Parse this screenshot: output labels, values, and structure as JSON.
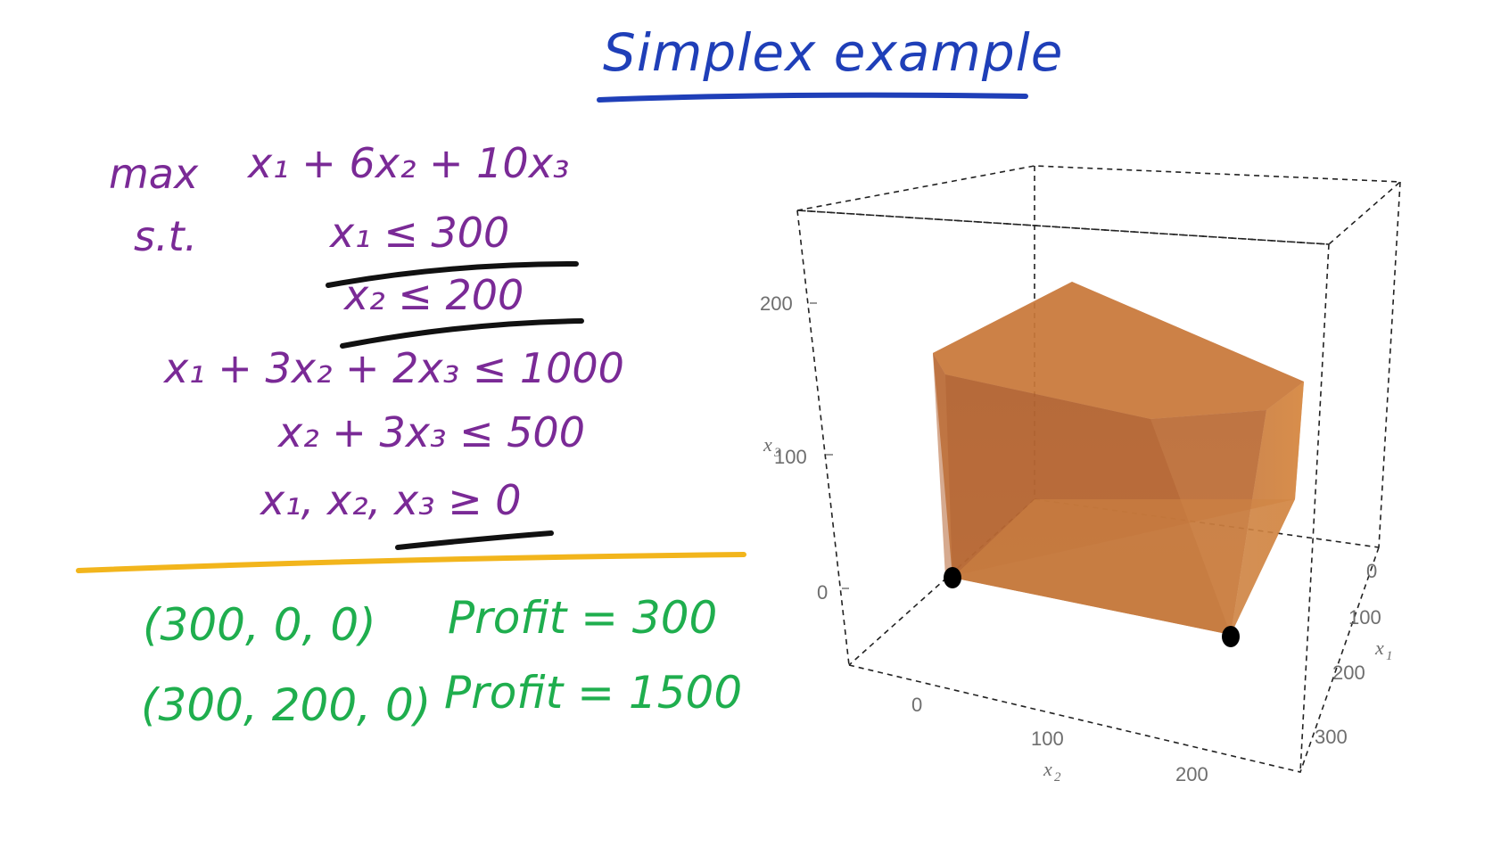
{
  "title": "Simplex example",
  "lp": {
    "objective_prefix": "max",
    "objective": "x₁ + 6x₂ + 10x₃",
    "st_label": "s.t.",
    "constraints": [
      "x₁ ≤ 300",
      "x₂ ≤ 200",
      "x₁ + 3x₂ + 2x₃ ≤ 1000",
      "x₂ + 3x₃ ≤ 500",
      "x₁, x₂, x₃ ≥ 0"
    ]
  },
  "results": [
    {
      "point": "(300, 0, 0)",
      "profit": "Profit = 300"
    },
    {
      "point": "(300, 200, 0)",
      "profit": "Profit = 1500"
    }
  ],
  "colors": {
    "title": "#1f3fb8",
    "lp": "#7a2a96",
    "results": "#1fae4e",
    "divider": "#f2b51c",
    "underline": "#111111",
    "polytope": "#c8732e"
  },
  "plot": {
    "axes": {
      "x1": {
        "label": "x",
        "sub": "1",
        "ticks": [
          "0",
          "100",
          "200",
          "300"
        ]
      },
      "x2": {
        "label": "x",
        "sub": "2",
        "ticks": [
          "0",
          "100",
          "200"
        ]
      },
      "x3": {
        "label": "x",
        "sub": "3",
        "ticks": [
          "0",
          "100",
          "200"
        ]
      }
    },
    "highlighted_vertices": [
      [
        300,
        0,
        0
      ],
      [
        300,
        200,
        0
      ]
    ]
  }
}
